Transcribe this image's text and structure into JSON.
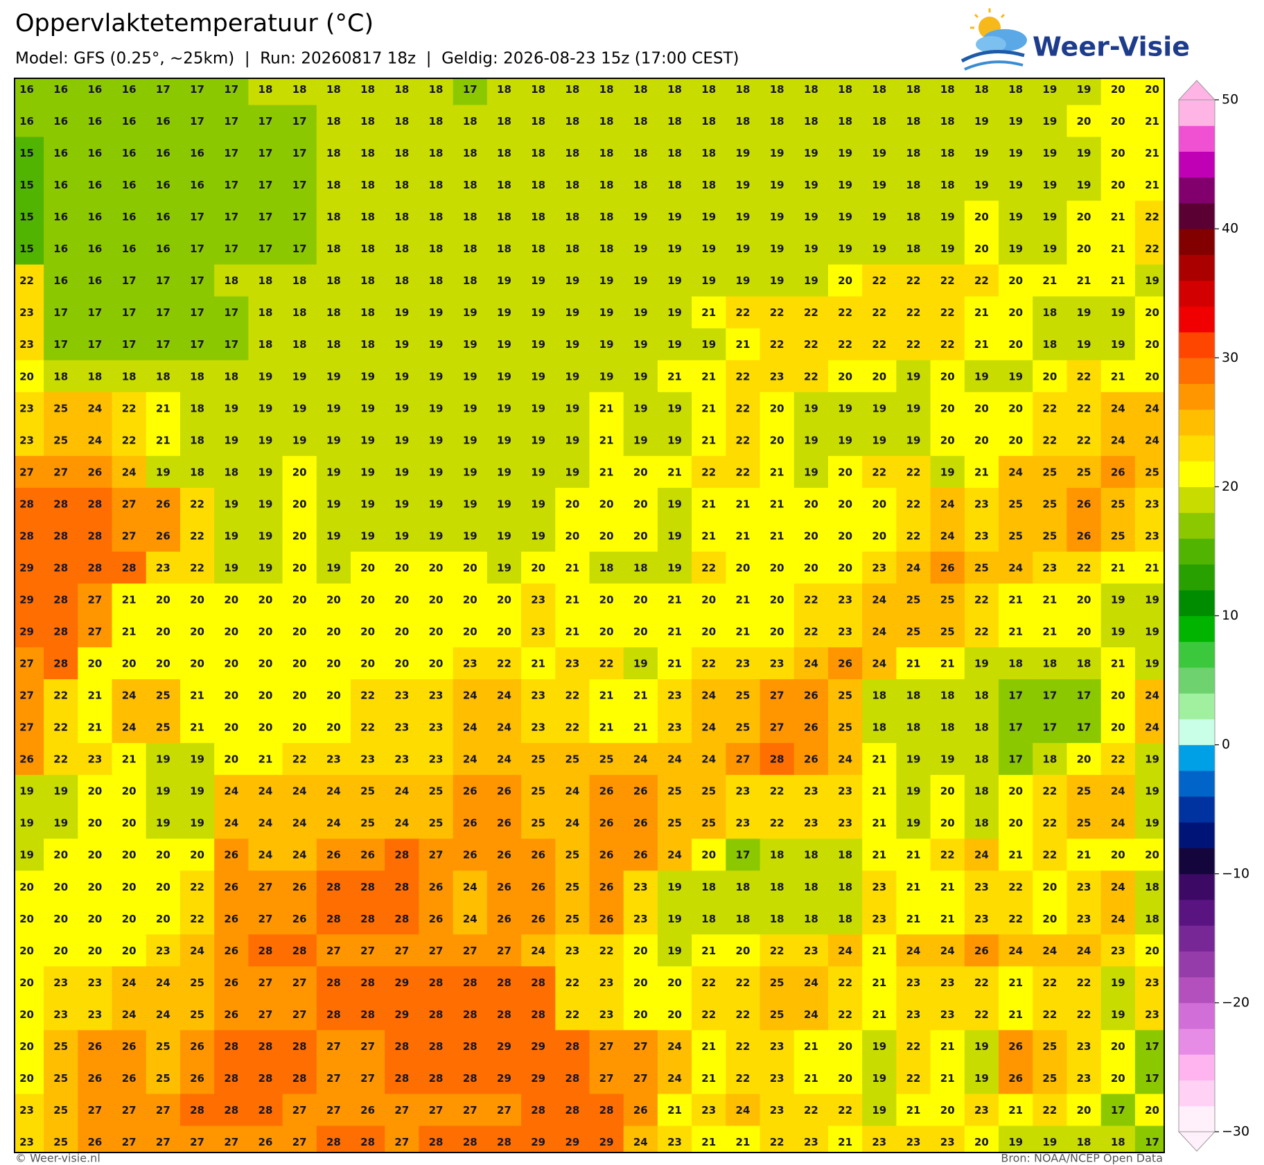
{
  "chart_data": {
    "type": "heatmap",
    "title": "Oppervlaktetemperatuur (°C)",
    "subtitle": "Model: GFS (0.25°, ~25km)  |  Run: 20260817 18z  |  Geldig: 2026-08-23 15z (17:00 CEST)",
    "logo": "Weer-Visie",
    "credit": "© Weer-visie.nl",
    "source": "Bron: NOAA/NCEP Open Data",
    "values": [
      [
        16,
        16,
        16,
        16,
        17,
        17,
        17,
        18,
        18,
        18,
        18,
        18,
        18,
        17,
        18,
        18,
        18,
        18,
        18,
        18,
        18,
        18,
        18,
        18,
        18,
        18,
        18,
        18,
        18,
        18,
        19,
        19,
        20,
        20
      ],
      [
        16,
        16,
        16,
        16,
        16,
        17,
        17,
        17,
        17,
        18,
        18,
        18,
        18,
        18,
        18,
        18,
        18,
        18,
        18,
        18,
        18,
        18,
        18,
        18,
        18,
        18,
        18,
        18,
        19,
        19,
        19,
        20,
        20,
        21
      ],
      [
        15,
        16,
        16,
        16,
        16,
        16,
        17,
        17,
        17,
        18,
        18,
        18,
        18,
        18,
        18,
        18,
        18,
        18,
        18,
        18,
        18,
        19,
        19,
        19,
        19,
        19,
        18,
        18,
        19,
        19,
        19,
        19,
        20,
        21
      ],
      [
        15,
        16,
        16,
        16,
        16,
        16,
        17,
        17,
        17,
        18,
        18,
        18,
        18,
        18,
        18,
        18,
        18,
        18,
        18,
        18,
        18,
        19,
        19,
        19,
        19,
        19,
        18,
        18,
        19,
        19,
        19,
        19,
        20,
        21
      ],
      [
        15,
        16,
        16,
        16,
        16,
        17,
        17,
        17,
        17,
        18,
        18,
        18,
        18,
        18,
        18,
        18,
        18,
        18,
        19,
        19,
        19,
        19,
        19,
        19,
        19,
        19,
        18,
        19,
        20,
        19,
        19,
        20,
        21,
        22
      ],
      [
        15,
        16,
        16,
        16,
        16,
        17,
        17,
        17,
        17,
        18,
        18,
        18,
        18,
        18,
        18,
        18,
        18,
        18,
        19,
        19,
        19,
        19,
        19,
        19,
        19,
        19,
        18,
        19,
        20,
        19,
        19,
        20,
        21,
        22
      ],
      [
        22,
        16,
        16,
        17,
        17,
        17,
        18,
        18,
        18,
        18,
        18,
        18,
        18,
        18,
        19,
        19,
        19,
        19,
        19,
        19,
        19,
        19,
        19,
        19,
        20,
        22,
        22,
        22,
        22,
        20,
        21,
        21,
        21,
        19
      ],
      [
        23,
        17,
        17,
        17,
        17,
        17,
        17,
        18,
        18,
        18,
        18,
        19,
        19,
        19,
        19,
        19,
        19,
        19,
        19,
        19,
        21,
        22,
        22,
        22,
        22,
        22,
        22,
        22,
        21,
        20,
        18,
        19,
        19,
        20
      ],
      [
        23,
        17,
        17,
        17,
        17,
        17,
        17,
        18,
        18,
        18,
        18,
        19,
        19,
        19,
        19,
        19,
        19,
        19,
        19,
        19,
        19,
        21,
        22,
        22,
        22,
        22,
        22,
        22,
        21,
        20,
        18,
        19,
        19,
        20
      ],
      [
        20,
        18,
        18,
        18,
        18,
        18,
        18,
        19,
        19,
        19,
        19,
        19,
        19,
        19,
        19,
        19,
        19,
        19,
        19,
        21,
        21,
        22,
        23,
        22,
        20,
        20,
        19,
        20,
        19,
        19,
        20,
        22,
        21,
        20
      ],
      [
        23,
        25,
        24,
        22,
        21,
        18,
        19,
        19,
        19,
        19,
        19,
        19,
        19,
        19,
        19,
        19,
        19,
        21,
        19,
        19,
        21,
        22,
        20,
        19,
        19,
        19,
        19,
        20,
        20,
        20,
        22,
        22,
        24,
        24
      ],
      [
        23,
        25,
        24,
        22,
        21,
        18,
        19,
        19,
        19,
        19,
        19,
        19,
        19,
        19,
        19,
        19,
        19,
        21,
        19,
        19,
        21,
        22,
        20,
        19,
        19,
        19,
        19,
        20,
        20,
        20,
        22,
        22,
        24,
        24
      ],
      [
        27,
        27,
        26,
        24,
        19,
        18,
        18,
        19,
        20,
        19,
        19,
        19,
        19,
        19,
        19,
        19,
        19,
        21,
        20,
        21,
        22,
        22,
        21,
        19,
        20,
        22,
        22,
        19,
        21,
        24,
        25,
        25,
        26,
        25
      ],
      [
        28,
        28,
        28,
        27,
        26,
        22,
        19,
        19,
        20,
        19,
        19,
        19,
        19,
        19,
        19,
        19,
        20,
        20,
        20,
        19,
        21,
        21,
        21,
        20,
        20,
        20,
        22,
        24,
        23,
        25,
        25,
        26,
        25,
        23
      ],
      [
        28,
        28,
        28,
        27,
        26,
        22,
        19,
        19,
        20,
        19,
        19,
        19,
        19,
        19,
        19,
        19,
        20,
        20,
        20,
        19,
        21,
        21,
        21,
        20,
        20,
        20,
        22,
        24,
        23,
        25,
        25,
        26,
        25,
        23
      ],
      [
        29,
        28,
        28,
        28,
        23,
        22,
        19,
        19,
        20,
        19,
        20,
        20,
        20,
        20,
        19,
        20,
        21,
        18,
        18,
        19,
        22,
        20,
        20,
        20,
        20,
        23,
        24,
        26,
        25,
        24,
        23,
        22,
        21,
        21
      ],
      [
        29,
        28,
        27,
        21,
        20,
        20,
        20,
        20,
        20,
        20,
        20,
        20,
        20,
        20,
        20,
        23,
        21,
        20,
        20,
        21,
        20,
        21,
        20,
        22,
        23,
        24,
        25,
        25,
        22,
        21,
        21,
        20,
        19,
        19
      ],
      [
        29,
        28,
        27,
        21,
        20,
        20,
        20,
        20,
        20,
        20,
        20,
        20,
        20,
        20,
        20,
        23,
        21,
        20,
        20,
        21,
        20,
        21,
        20,
        22,
        23,
        24,
        25,
        25,
        22,
        21,
        21,
        20,
        19,
        19
      ],
      [
        27,
        28,
        20,
        20,
        20,
        20,
        20,
        20,
        20,
        20,
        20,
        20,
        20,
        23,
        22,
        21,
        23,
        22,
        19,
        21,
        22,
        23,
        23,
        24,
        26,
        24,
        21,
        21,
        19,
        18,
        18,
        18,
        21,
        19
      ],
      [
        27,
        22,
        21,
        24,
        25,
        21,
        20,
        20,
        20,
        20,
        22,
        23,
        23,
        24,
        24,
        23,
        22,
        21,
        21,
        23,
        24,
        25,
        27,
        26,
        25,
        18,
        18,
        18,
        18,
        17,
        17,
        17,
        20,
        24
      ],
      [
        27,
        22,
        21,
        24,
        25,
        21,
        20,
        20,
        20,
        20,
        22,
        23,
        23,
        24,
        24,
        23,
        22,
        21,
        21,
        23,
        24,
        25,
        27,
        26,
        25,
        18,
        18,
        18,
        18,
        17,
        17,
        17,
        20,
        24
      ],
      [
        26,
        22,
        23,
        21,
        19,
        19,
        20,
        21,
        22,
        23,
        23,
        23,
        23,
        24,
        24,
        25,
        25,
        25,
        24,
        24,
        24,
        27,
        28,
        26,
        24,
        21,
        19,
        19,
        18,
        17,
        18,
        20,
        22,
        19
      ],
      [
        19,
        19,
        20,
        20,
        19,
        19,
        24,
        24,
        24,
        24,
        25,
        24,
        25,
        26,
        26,
        25,
        24,
        26,
        26,
        25,
        25,
        23,
        22,
        23,
        23,
        21,
        19,
        20,
        18,
        20,
        22,
        25,
        24,
        19
      ],
      [
        19,
        19,
        20,
        20,
        19,
        19,
        24,
        24,
        24,
        24,
        25,
        24,
        25,
        26,
        26,
        25,
        24,
        26,
        26,
        25,
        25,
        23,
        22,
        23,
        23,
        21,
        19,
        20,
        18,
        20,
        22,
        25,
        24,
        19
      ],
      [
        19,
        20,
        20,
        20,
        20,
        20,
        26,
        24,
        24,
        26,
        26,
        28,
        27,
        26,
        26,
        26,
        25,
        26,
        26,
        24,
        20,
        17,
        18,
        18,
        18,
        21,
        21,
        22,
        24,
        21,
        22,
        21,
        20,
        20
      ],
      [
        20,
        20,
        20,
        20,
        20,
        22,
        26,
        27,
        26,
        28,
        28,
        28,
        26,
        24,
        26,
        26,
        25,
        26,
        23,
        19,
        18,
        18,
        18,
        18,
        18,
        23,
        21,
        21,
        23,
        22,
        20,
        23,
        24,
        18
      ],
      [
        20,
        20,
        20,
        20,
        20,
        22,
        26,
        27,
        26,
        28,
        28,
        28,
        26,
        24,
        26,
        26,
        25,
        26,
        23,
        19,
        18,
        18,
        18,
        18,
        18,
        23,
        21,
        21,
        23,
        22,
        20,
        23,
        24,
        18
      ],
      [
        20,
        20,
        20,
        20,
        23,
        24,
        26,
        28,
        28,
        27,
        27,
        27,
        27,
        27,
        27,
        24,
        23,
        22,
        20,
        19,
        21,
        20,
        22,
        23,
        24,
        21,
        24,
        24,
        26,
        24,
        24,
        24,
        23,
        20
      ],
      [
        20,
        23,
        23,
        24,
        24,
        25,
        26,
        27,
        27,
        28,
        28,
        29,
        28,
        28,
        28,
        28,
        22,
        23,
        20,
        20,
        22,
        22,
        25,
        24,
        22,
        21,
        23,
        23,
        22,
        21,
        22,
        22,
        19,
        23
      ],
      [
        20,
        23,
        23,
        24,
        24,
        25,
        26,
        27,
        27,
        28,
        28,
        29,
        28,
        28,
        28,
        28,
        22,
        23,
        20,
        20,
        22,
        22,
        25,
        24,
        22,
        21,
        23,
        23,
        22,
        21,
        22,
        22,
        19,
        23
      ],
      [
        20,
        25,
        26,
        26,
        25,
        26,
        28,
        28,
        28,
        27,
        27,
        28,
        28,
        28,
        29,
        29,
        28,
        27,
        27,
        24,
        21,
        22,
        23,
        21,
        20,
        19,
        22,
        21,
        19,
        26,
        25,
        23,
        20,
        17
      ],
      [
        20,
        25,
        26,
        26,
        25,
        26,
        28,
        28,
        28,
        27,
        27,
        28,
        28,
        28,
        29,
        29,
        28,
        27,
        27,
        24,
        21,
        22,
        23,
        21,
        20,
        19,
        22,
        21,
        19,
        26,
        25,
        23,
        20,
        17
      ],
      [
        23,
        25,
        27,
        27,
        27,
        28,
        28,
        28,
        27,
        27,
        26,
        27,
        27,
        27,
        27,
        28,
        28,
        28,
        26,
        21,
        23,
        24,
        23,
        22,
        22,
        19,
        21,
        20,
        23,
        21,
        22,
        20,
        17,
        20
      ],
      [
        23,
        25,
        26,
        27,
        27,
        27,
        27,
        26,
        27,
        28,
        28,
        27,
        28,
        28,
        28,
        29,
        29,
        29,
        24,
        23,
        21,
        21,
        22,
        23,
        21,
        23,
        23,
        23,
        20,
        19,
        19,
        18,
        18,
        17
      ]
    ],
    "colorbar": {
      "ylim": [
        -30,
        50
      ],
      "yticks": [
        50,
        40,
        30,
        20,
        10,
        0,
        {
          "value": -10,
          "label": "−10"
        },
        {
          "value": -20,
          "label": "−20"
        },
        {
          "value": -30,
          "label": "−30"
        }
      ],
      "colors": [
        "#fff0fc",
        "#ffd2f5",
        "#ffb4f0",
        "#e68ce6",
        "#d26ed7",
        "#b450be",
        "#963caa",
        "#782896",
        "#5a1482",
        "#3c0a64",
        "#14053c",
        "#001478",
        "#0032a0",
        "#0064c8",
        "#00a0e6",
        "#c8ffe6",
        "#a0f0a0",
        "#6ed26e",
        "#3cc83c",
        "#00b400",
        "#008c00",
        "#28a000",
        "#50b400",
        "#8cc800",
        "#c8dc00",
        "#ffff00",
        "#ffdc00",
        "#ffbe00",
        "#ff9600",
        "#ff6e00",
        "#ff4600",
        "#f00000",
        "#d20000",
        "#aa0000",
        "#820000",
        "#5a0032",
        "#82006e",
        "#c000b4",
        "#f050d2",
        "#ffb4e6"
      ]
    }
  }
}
